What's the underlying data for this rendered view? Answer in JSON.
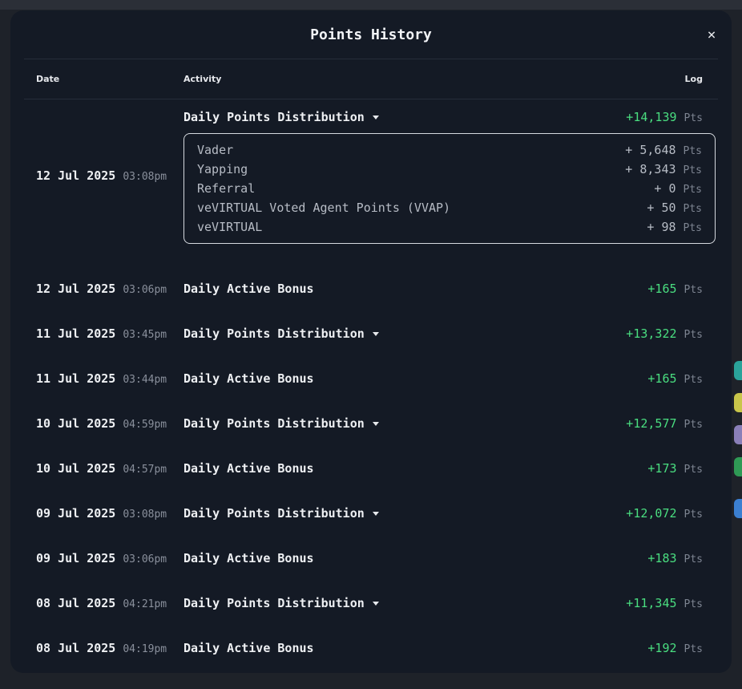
{
  "modal": {
    "title": "Points History",
    "close_icon": "×"
  },
  "table": {
    "headers": {
      "date": "Date",
      "activity": "Activity",
      "log": "Log"
    }
  },
  "expanded": {
    "date": "12 Jul 2025",
    "time": "03:08pm",
    "activity": "Daily Points Distribution",
    "value": "+14,139",
    "unit": "Pts",
    "breakdown": [
      {
        "label": "Vader",
        "value": "+ 5,648",
        "unit": "Pts"
      },
      {
        "label": "Yapping",
        "value": "+ 8,343",
        "unit": "Pts"
      },
      {
        "label": "Referral",
        "value": "+ 0",
        "unit": "Pts"
      },
      {
        "label": "veVIRTUAL Voted Agent Points (VVAP)",
        "value": "+ 50",
        "unit": "Pts"
      },
      {
        "label": "veVIRTUAL",
        "value": "+ 98",
        "unit": "Pts"
      }
    ]
  },
  "rows": [
    {
      "date": "12 Jul 2025",
      "time": "03:06pm",
      "activity": "Daily Active Bonus",
      "value": "+165",
      "unit": "Pts"
    },
    {
      "date": "11 Jul 2025",
      "time": "03:45pm",
      "activity": "Daily Points Distribution",
      "value": "+13,322",
      "unit": "Pts"
    },
    {
      "date": "11 Jul 2025",
      "time": "03:44pm",
      "activity": "Daily Active Bonus",
      "value": "+165",
      "unit": "Pts"
    },
    {
      "date": "10 Jul 2025",
      "time": "04:59pm",
      "activity": "Daily Points Distribution",
      "value": "+12,577",
      "unit": "Pts"
    },
    {
      "date": "10 Jul 2025",
      "time": "04:57pm",
      "activity": "Daily Active Bonus",
      "value": "+173",
      "unit": "Pts"
    },
    {
      "date": "09 Jul 2025",
      "time": "03:08pm",
      "activity": "Daily Points Distribution",
      "value": "+12,072",
      "unit": "Pts"
    },
    {
      "date": "09 Jul 2025",
      "time": "03:06pm",
      "activity": "Daily Active Bonus",
      "value": "+183",
      "unit": "Pts"
    },
    {
      "date": "08 Jul 2025",
      "time": "04:21pm",
      "activity": "Daily Points Distribution",
      "value": "+11,345",
      "unit": "Pts"
    },
    {
      "date": "08 Jul 2025",
      "time": "04:19pm",
      "activity": "Daily Active Bonus",
      "value": "+192",
      "unit": "Pts"
    }
  ],
  "colors": {
    "positive": "#4ade80",
    "modal_bg": "#141a25",
    "backdrop": "#1e2229"
  }
}
